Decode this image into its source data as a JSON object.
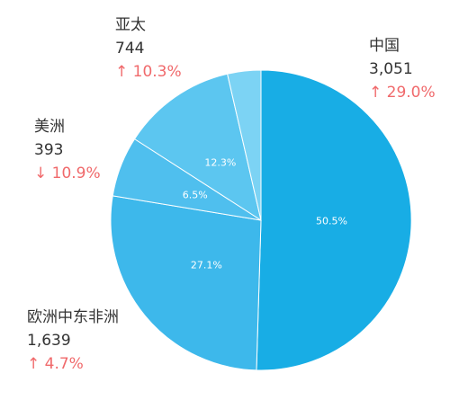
{
  "chart_data": {
    "type": "pie",
    "slices": [
      {
        "name": "中国",
        "value": 3051,
        "percent_label": "50.5%",
        "change": "↑ 29.0%",
        "color": "#18ADE5"
      },
      {
        "name": "欧洲中东非洲",
        "value": 1639,
        "percent_label": "27.1%",
        "change": "↑ 4.7%",
        "color": "#3DB8EB"
      },
      {
        "name": "美洲",
        "value": 393,
        "percent_label": "6.5%",
        "change": "↓ 10.9%",
        "color": "#4FBFEE"
      },
      {
        "name": "亚太",
        "value": 744,
        "percent_label": "12.3%",
        "change": "↑ 10.3%",
        "color": "#5CC6F0"
      },
      {
        "name": "",
        "value": 217,
        "percent_label": "",
        "change": "",
        "color": "#7CD3F4"
      }
    ]
  },
  "callouts": [
    {
      "name": "中国",
      "value": "3,051",
      "change": "↑ 29.0%"
    },
    {
      "name": "欧洲中东非洲",
      "value": "1,639",
      "change": "↑ 4.7%"
    },
    {
      "name": "美洲",
      "value": "393",
      "change": "↓ 10.9%"
    },
    {
      "name": "亚太",
      "value": "744",
      "change": "↑ 10.3%"
    }
  ],
  "colors": {
    "change_text": "#F0696B",
    "callout_text": "#333333"
  }
}
